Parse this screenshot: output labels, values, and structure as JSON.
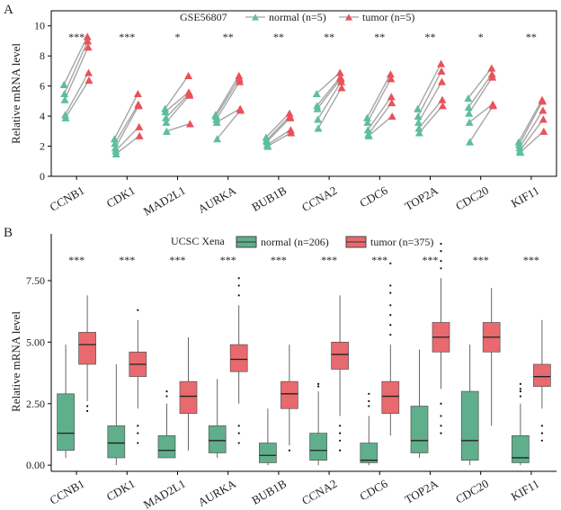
{
  "panel_labels": [
    "A",
    "B"
  ],
  "chart_data": [
    {
      "type": "scatter",
      "title": "GSE56807",
      "ylabel": "Relative mRNA level",
      "ylim": [
        0,
        11
      ],
      "yticks": [
        0,
        2,
        4,
        6,
        8,
        10
      ],
      "legend": {
        "placement": "top",
        "normal": "normal (n=5)",
        "tumor": "tumor (n=5)"
      },
      "colors": {
        "normal": "#5dbf9c",
        "tumor": "#e8525a",
        "line": "#a6a6a6"
      },
      "genes": [
        "CCNB1",
        "CDK1",
        "MAD2L1",
        "AURKA",
        "BUB1B",
        "CCNA2",
        "CDC6",
        "TOP2A",
        "CDC20",
        "KIF11"
      ],
      "significance": [
        "***",
        "***",
        "*",
        "**",
        "**",
        "**",
        "**",
        "**",
        "*",
        "**"
      ],
      "normal": [
        [
          6.1,
          5.5,
          5.1,
          4.1,
          3.9
        ],
        [
          2.5,
          2.2,
          1.9,
          1.7,
          1.5
        ],
        [
          4.5,
          4.3,
          3.9,
          3.6,
          3.0
        ],
        [
          4.1,
          4.0,
          3.8,
          3.6,
          2.5
        ],
        [
          2.6,
          2.4,
          2.3,
          2.1,
          2.0
        ],
        [
          5.5,
          4.7,
          4.5,
          3.8,
          3.2
        ],
        [
          3.9,
          3.6,
          3.1,
          2.8,
          2.7
        ],
        [
          4.5,
          4.0,
          3.6,
          3.2,
          2.9
        ],
        [
          5.2,
          4.6,
          4.2,
          3.6,
          2.3
        ],
        [
          2.3,
          2.1,
          1.9,
          1.7,
          1.6
        ]
      ],
      "tumor": [
        [
          9.3,
          9.0,
          8.6,
          6.9,
          6.4
        ],
        [
          5.5,
          4.8,
          4.7,
          3.3,
          2.7
        ],
        [
          6.7,
          5.6,
          5.5,
          5.4,
          3.5
        ],
        [
          6.7,
          6.5,
          6.3,
          4.5,
          4.4
        ],
        [
          4.2,
          4.0,
          3.9,
          3.1,
          2.9
        ],
        [
          6.9,
          6.6,
          6.5,
          6.3,
          5.9
        ],
        [
          6.8,
          6.5,
          5.3,
          4.9,
          4.0
        ],
        [
          7.5,
          7.0,
          6.3,
          5.1,
          4.7
        ],
        [
          7.2,
          6.8,
          6.6,
          4.8,
          4.7
        ],
        [
          5.1,
          5.0,
          4.4,
          3.8,
          3.0
        ]
      ]
    },
    {
      "type": "box",
      "title": "UCSC Xena",
      "ylabel": "Relative mRNA level",
      "ylim": [
        -0.25,
        9.4
      ],
      "yticks": [
        0,
        2.5,
        5,
        7.5
      ],
      "ytick_labels": [
        "0.00",
        "2.50",
        "5.00",
        "7.50"
      ],
      "legend": {
        "placement": "top",
        "normal": "normal (n=206)",
        "tumor": "tumor (n=375)"
      },
      "colors": {
        "normal": "#5fae8c",
        "tumor": "#e86a6e",
        "edge": "#333333"
      },
      "genes": [
        "CCNB1",
        "CDK1",
        "MAD2L1",
        "AURKA",
        "BUB1B",
        "CCNA2",
        "CDC6",
        "TOP2A",
        "CDC20",
        "KIF11"
      ],
      "significance": [
        "***",
        "***",
        "***",
        "***",
        "***",
        "***",
        "***",
        "***",
        "***",
        "***"
      ],
      "normal": [
        {
          "min": 0.3,
          "q1": 0.6,
          "median": 1.3,
          "q3": 2.9,
          "max": 4.9,
          "outliers": []
        },
        {
          "min": 0.0,
          "q1": 0.3,
          "median": 0.9,
          "q3": 1.6,
          "max": 4.1,
          "outliers": []
        },
        {
          "min": 0.3,
          "q1": 0.3,
          "median": 0.6,
          "q3": 1.2,
          "max": 2.5,
          "outliers": [
            2.8,
            3.0
          ]
        },
        {
          "min": 0.3,
          "q1": 0.5,
          "median": 1.0,
          "q3": 1.6,
          "max": 3.5,
          "outliers": []
        },
        {
          "min": 0.0,
          "q1": 0.1,
          "median": 0.4,
          "q3": 0.9,
          "max": 2.3,
          "outliers": []
        },
        {
          "min": 0.0,
          "q1": 0.2,
          "median": 0.6,
          "q3": 1.3,
          "max": 3.0,
          "outliers": [
            3.2,
            3.3
          ]
        },
        {
          "min": 0.0,
          "q1": 0.1,
          "median": 0.2,
          "q3": 0.9,
          "max": 2.0,
          "outliers": [
            2.4,
            2.6,
            2.9
          ]
        },
        {
          "min": 0.3,
          "q1": 0.5,
          "median": 1.0,
          "q3": 2.4,
          "max": 4.7,
          "outliers": []
        },
        {
          "min": 0.0,
          "q1": 0.2,
          "median": 1.0,
          "q3": 3.0,
          "max": 4.9,
          "outliers": []
        },
        {
          "min": 0.0,
          "q1": 0.1,
          "median": 0.3,
          "q3": 1.2,
          "max": 2.5,
          "outliers": [
            2.8,
            3.0,
            3.1,
            3.3
          ]
        }
      ],
      "tumor": [
        {
          "min": 2.6,
          "q1": 4.1,
          "median": 4.9,
          "q3": 5.4,
          "max": 6.9,
          "outliers": [
            2.2,
            2.4
          ]
        },
        {
          "min": 2.3,
          "q1": 3.6,
          "median": 4.1,
          "q3": 4.6,
          "max": 5.9,
          "outliers": [
            0.9,
            1.3,
            1.6,
            6.3
          ]
        },
        {
          "min": 0.6,
          "q1": 2.1,
          "median": 2.8,
          "q3": 3.4,
          "max": 5.2,
          "outliers": []
        },
        {
          "min": 2.5,
          "q1": 3.8,
          "median": 4.3,
          "q3": 4.9,
          "max": 6.5,
          "outliers": [
            0.9,
            1.3,
            1.6,
            6.9,
            7.3,
            7.6
          ]
        },
        {
          "min": 0.8,
          "q1": 2.3,
          "median": 2.9,
          "q3": 3.4,
          "max": 4.9,
          "outliers": [
            0.6
          ]
        },
        {
          "min": 2.0,
          "q1": 3.9,
          "median": 4.5,
          "q3": 5.0,
          "max": 6.9,
          "outliers": [
            0.6,
            1.0,
            1.3,
            1.6
          ]
        },
        {
          "min": 1.2,
          "q1": 2.1,
          "median": 2.8,
          "q3": 3.4,
          "max": 4.9,
          "outliers": [
            5.3,
            5.7,
            6.1,
            6.5,
            7.0,
            7.3,
            8.2
          ]
        },
        {
          "min": 3.1,
          "q1": 4.6,
          "median": 5.2,
          "q3": 5.8,
          "max": 7.6,
          "outliers": [
            1.3,
            1.6,
            2.0,
            2.5,
            8.0,
            8.3,
            8.7,
            9.0
          ]
        },
        {
          "min": 1.6,
          "q1": 4.6,
          "median": 5.2,
          "q3": 5.8,
          "max": 7.2,
          "outliers": []
        },
        {
          "min": 2.3,
          "q1": 3.2,
          "median": 3.6,
          "q3": 4.1,
          "max": 5.9,
          "outliers": [
            1.0,
            1.3,
            1.6
          ]
        }
      ]
    }
  ]
}
